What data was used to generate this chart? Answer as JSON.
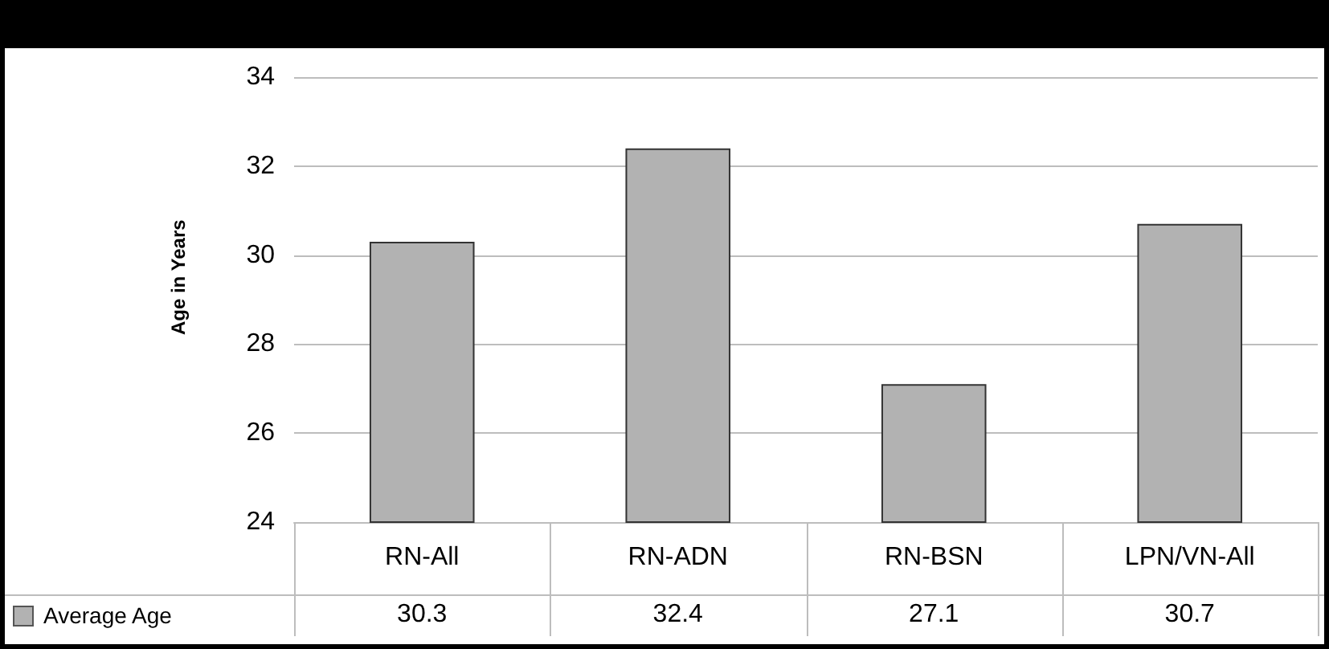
{
  "chart_data": {
    "type": "bar",
    "ylabel": "Age in Years",
    "categories": [
      "RN-All",
      "RN-ADN",
      "RN-BSN",
      "LPN/VN-All"
    ],
    "series": [
      {
        "name": "Average Age",
        "color": "#b2b2b2",
        "values": [
          30.3,
          32.4,
          27.1,
          30.7
        ]
      }
    ],
    "ylim": [
      24,
      34
    ],
    "yticks": [
      24,
      26,
      28,
      30,
      32,
      34
    ],
    "grid": "y",
    "legend": "bottom left",
    "data_labels": true
  }
}
